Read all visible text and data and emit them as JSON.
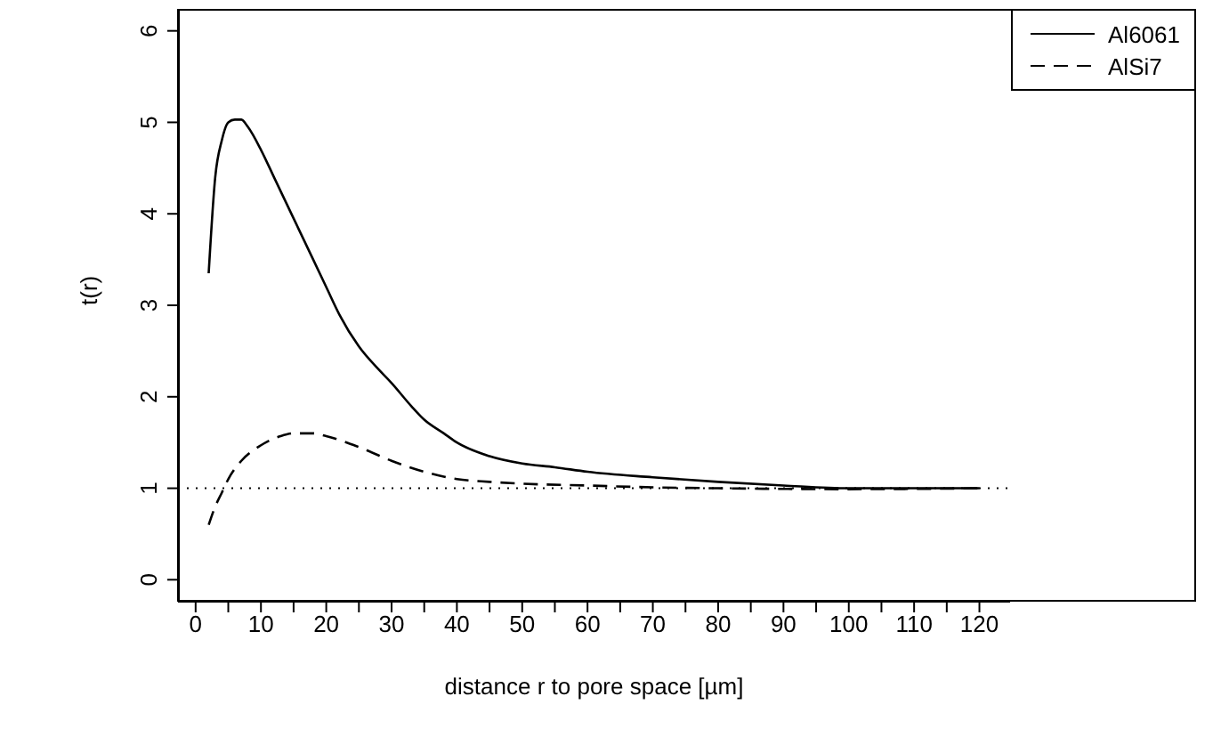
{
  "chart_data": {
    "type": "line",
    "xlabel": "distance r to pore space [µm]",
    "ylabel": "t(r)",
    "xlim": [
      -2.7,
      124.7
    ],
    "ylim": [
      -0.24,
      6.24
    ],
    "xticks": [
      0,
      {
        "value": 5,
        "label": null
      },
      10,
      {
        "value": 15,
        "label": null
      },
      20,
      {
        "value": 25,
        "label": null
      },
      30,
      {
        "value": 35,
        "label": null
      },
      40,
      {
        "value": 45,
        "label": null
      },
      50,
      {
        "value": 55,
        "label": null
      },
      60,
      {
        "value": 65,
        "label": null
      },
      70,
      {
        "value": 75,
        "label": null
      },
      80,
      {
        "value": 85,
        "label": null
      },
      90,
      {
        "value": 95,
        "label": null
      },
      100,
      {
        "value": 105,
        "label": null
      },
      110,
      {
        "value": 115,
        "label": null
      },
      120
    ],
    "yticks": [
      0,
      1,
      2,
      3,
      4,
      5,
      6
    ],
    "grid": false,
    "legend": "top right",
    "marker": "none",
    "ref_lines": [
      {
        "axis": "y",
        "value": 1,
        "line_style": "dotted",
        "color": "#000000"
      }
    ],
    "series": [
      {
        "name": "Al6061",
        "color": "#000000",
        "line_style": "solid",
        "x": [
          2,
          3,
          4,
          5,
          6,
          7,
          8,
          10,
          12,
          15,
          18,
          20,
          22,
          25,
          28,
          30,
          33,
          35,
          38,
          40,
          45,
          50,
          55,
          60,
          70,
          80,
          90,
          100,
          110,
          120
        ],
        "values": [
          3.35,
          4.4,
          4.8,
          5.0,
          5.03,
          5.03,
          4.95,
          4.7,
          4.4,
          3.95,
          3.5,
          3.2,
          2.9,
          2.55,
          2.3,
          2.15,
          1.9,
          1.75,
          1.6,
          1.5,
          1.35,
          1.27,
          1.23,
          1.18,
          1.12,
          1.07,
          1.03,
          1.0,
          1.0,
          1.0
        ]
      },
      {
        "name": "AlSi7",
        "color": "#000000",
        "line_style": "dashed",
        "x": [
          2,
          3,
          4,
          5,
          7,
          10,
          13,
          15,
          18,
          20,
          25,
          30,
          35,
          40,
          45,
          50,
          60,
          70,
          80,
          100,
          120
        ],
        "values": [
          0.6,
          0.8,
          0.95,
          1.1,
          1.3,
          1.47,
          1.57,
          1.6,
          1.6,
          1.57,
          1.45,
          1.3,
          1.18,
          1.1,
          1.07,
          1.05,
          1.03,
          1.01,
          1.0,
          0.99,
          1.0
        ]
      }
    ]
  }
}
